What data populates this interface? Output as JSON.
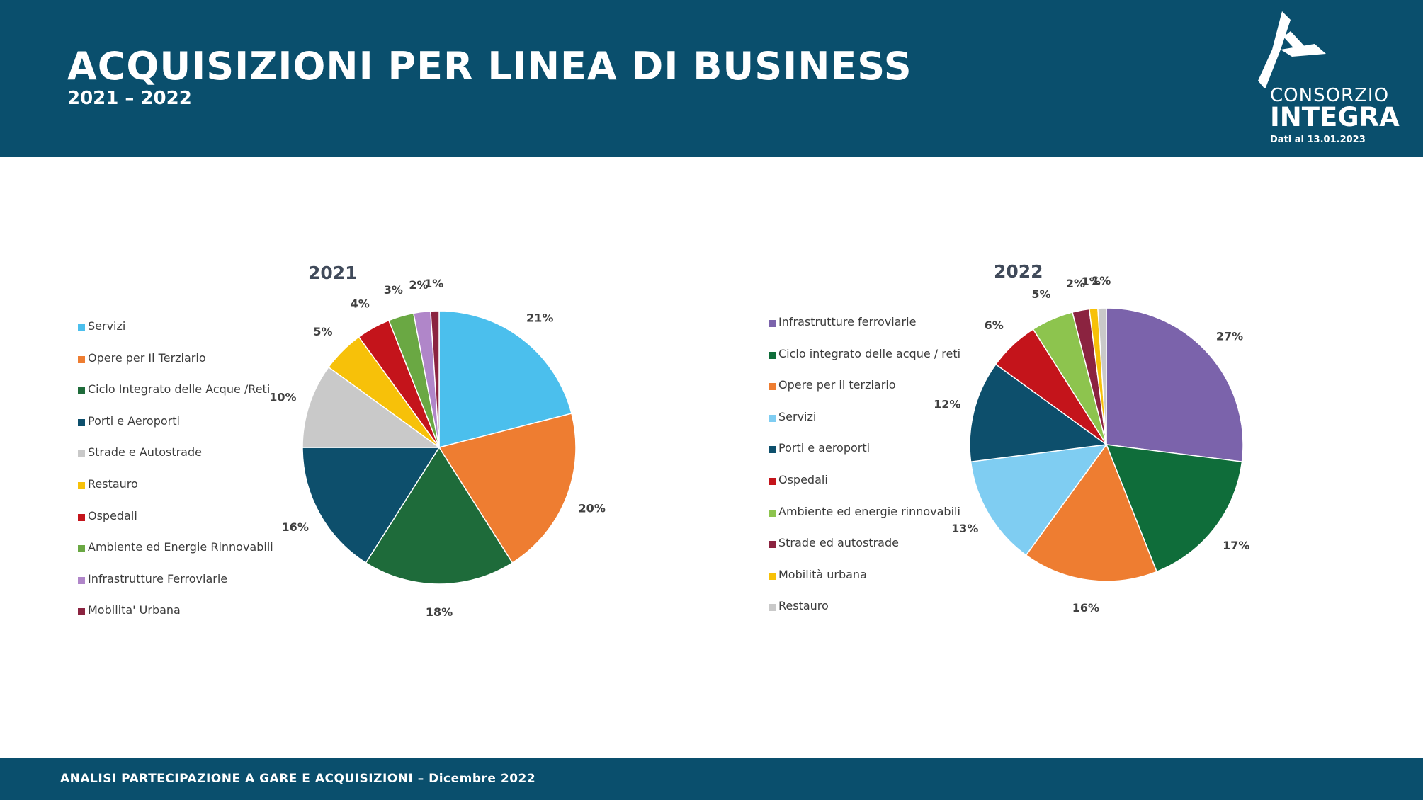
{
  "header": {
    "title": "ACQUISIZIONI PER LINEA DI BUSINESS",
    "subtitle": "2021 – 2022",
    "logo_line1": "CONSORZIO",
    "logo_line2": "INTEGRA",
    "data_date": "Dati al 13.01.2023"
  },
  "footer": {
    "text": "ANALISI PARTECIPAZIONE A GARE E ACQUISIZIONI – Dicembre 2022"
  },
  "colors": {
    "header_bg": "#0a4f6d",
    "text_dark": "#404a5a"
  },
  "chart_data": [
    {
      "type": "pie",
      "title": "2021",
      "legend_position": "left",
      "slices": [
        {
          "label": "Servizi",
          "value": 21,
          "color": "#4bbfed"
        },
        {
          "label": "Opere per Il Terziario",
          "value": 20,
          "color": "#ee7d31"
        },
        {
          "label": "Ciclo Integrato delle Acque /Reti",
          "value": 18,
          "color": "#1e6b3a"
        },
        {
          "label": "Porti e Aeroporti",
          "value": 16,
          "color": "#0d4f6c"
        },
        {
          "label": "Strade e Autostrade",
          "value": 10,
          "color": "#c9c9c9"
        },
        {
          "label": "Restauro",
          "value": 5,
          "color": "#f7c109"
        },
        {
          "label": "Ospedali",
          "value": 4,
          "color": "#c4141b"
        },
        {
          "label": "Ambiente ed Energie Rinnovabili",
          "value": 3,
          "color": "#6aa843"
        },
        {
          "label": "Infrastrutture Ferroviarie",
          "value": 2,
          "color": "#b086c9"
        },
        {
          "label": "Mobilita' Urbana",
          "value": 1,
          "color": "#8b2340"
        }
      ]
    },
    {
      "type": "pie",
      "title": "2022",
      "legend_position": "left",
      "slices": [
        {
          "label": "Infrastrutture ferroviarie",
          "value": 27,
          "color": "#7b63ab"
        },
        {
          "label": "Ciclo integrato delle acque / reti",
          "value": 17,
          "color": "#0f6d3a"
        },
        {
          "label": "Opere per il terziario",
          "value": 16,
          "color": "#ee7d31"
        },
        {
          "label": "Servizi",
          "value": 13,
          "color": "#7fcdf2"
        },
        {
          "label": "Porti e aeroporti",
          "value": 12,
          "color": "#0d4f6c"
        },
        {
          "label": "Ospedali",
          "value": 6,
          "color": "#c4141b"
        },
        {
          "label": "Ambiente ed energie rinnovabili",
          "value": 5,
          "color": "#8dc44e"
        },
        {
          "label": "Strade ed autostrade",
          "value": 2,
          "color": "#8b2340"
        },
        {
          "label": "Mobilità urbana",
          "value": 1,
          "color": "#f7c109"
        },
        {
          "label": "Restauro",
          "value": 1,
          "color": "#c9c9c9"
        }
      ]
    }
  ]
}
